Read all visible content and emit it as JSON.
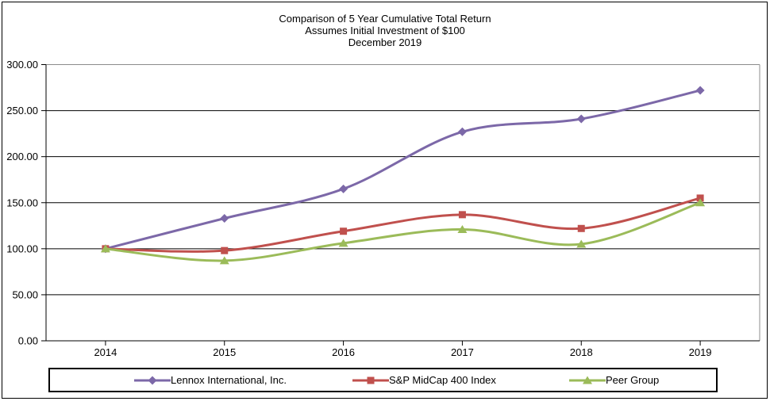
{
  "chart_data": {
    "type": "line",
    "smoothed": true,
    "title_lines": [
      "Comparison of 5 Year Cumulative Total Return",
      "Assumes Initial Investment of $100",
      "December 2019"
    ],
    "categories": [
      "2014",
      "2015",
      "2016",
      "2017",
      "2018",
      "2019"
    ],
    "series": [
      {
        "name": "Lennox International, Inc.",
        "marker": "diamond",
        "color": "#7C68A8",
        "values": [
          100,
          133,
          165,
          227,
          241,
          272
        ]
      },
      {
        "name": "S&P MidCap 400 Index",
        "marker": "square",
        "color": "#C0504D",
        "values": [
          100,
          98,
          119,
          137,
          122,
          155
        ]
      },
      {
        "name": "Peer Group",
        "marker": "triangle",
        "color": "#9BBB59",
        "values": [
          100,
          87,
          106,
          121,
          105,
          150
        ]
      }
    ],
    "ylim": [
      0,
      300
    ],
    "y_tick_step": 50,
    "y_tick_decimals": 2,
    "grid": true,
    "legend_position": "bottom",
    "axis_color": "#000000",
    "plot_border_color": "#8C8C8C",
    "background_color": "#FFFFFF"
  }
}
